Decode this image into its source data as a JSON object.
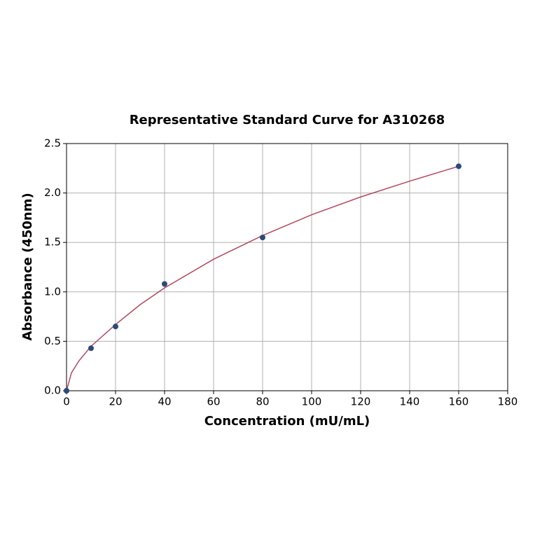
{
  "chart_data": {
    "type": "scatter",
    "title": "Representative Standard Curve for A310268",
    "x_label": "Concentration (mU/mL)",
    "y_label": "Absorbance (450nm)",
    "series": [
      {
        "style": "line",
        "color": "#b5475f",
        "x": [
          0,
          2,
          5,
          10,
          20,
          30,
          40,
          60,
          80,
          100,
          120,
          140,
          160
        ],
        "values": [
          0.0,
          0.18,
          0.3,
          0.45,
          0.67,
          0.87,
          1.04,
          1.33,
          1.57,
          1.78,
          1.96,
          2.12,
          2.27
        ]
      },
      {
        "style": "points",
        "color": "#2a4a78",
        "x": [
          0,
          10,
          20,
          40,
          80,
          160
        ],
        "values": [
          0.0,
          0.43,
          0.65,
          1.08,
          1.55,
          2.27
        ]
      }
    ],
    "xlim": [
      0,
      180
    ],
    "xticks": [
      0,
      20,
      40,
      60,
      80,
      100,
      120,
      140,
      160,
      180
    ],
    "ylim": [
      0,
      2.5
    ],
    "yticks": [
      {
        "value": 0,
        "label": "0.0"
      },
      {
        "value": 0.5,
        "label": "0.5"
      },
      {
        "value": 1,
        "label": "1.0"
      },
      {
        "value": 1.5,
        "label": "1.5"
      },
      {
        "value": 2,
        "label": "2.0"
      },
      {
        "value": 2.5,
        "label": "2.5"
      }
    ],
    "grid": true
  }
}
